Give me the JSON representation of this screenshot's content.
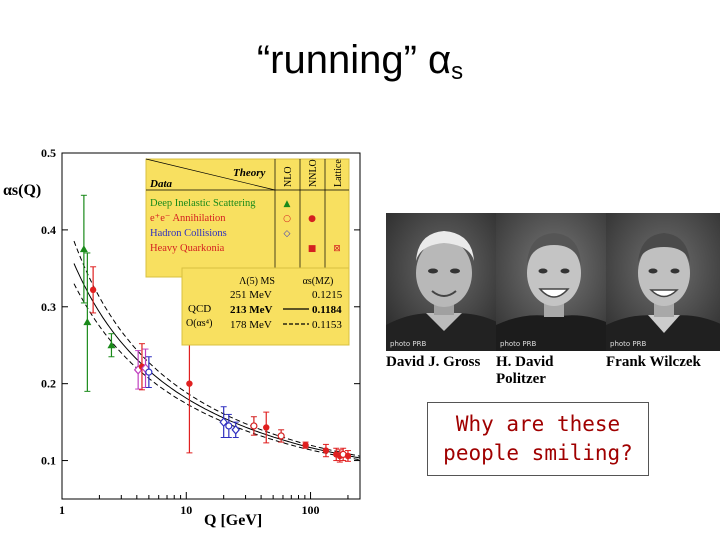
{
  "slide_title": {
    "main": "“running” α",
    "subscript": "s"
  },
  "chart_data": {
    "type": "scatter",
    "x_scale": "log",
    "y_scale": "linear",
    "xlim": [
      1,
      250
    ],
    "ylim": [
      0.05,
      0.5
    ],
    "xlabel": "Q [GeV]",
    "ylabel": "αs(Q)",
    "x_ticks": [
      1,
      10,
      100
    ],
    "y_ticks": [
      0.1,
      0.2,
      0.3,
      0.4,
      0.5
    ],
    "data_legend": {
      "header_data": "Data",
      "header_theory": "Theory",
      "columns": [
        "NLO",
        "NNLO",
        "Lattice"
      ],
      "rows": [
        {
          "label": "Deep Inelastic Scattering",
          "color": "#1a8a1a",
          "nlo": "▲",
          "nnlo": "",
          "lattice": ""
        },
        {
          "label": "e⁺e⁻ Annihilation",
          "color": "#d42020",
          "nlo": "○",
          "nnlo": "●",
          "lattice": ""
        },
        {
          "label": "Hadron Collisions",
          "color": "#3030c0",
          "nlo": "◇",
          "nnlo": "",
          "lattice": ""
        },
        {
          "label": "Heavy Quarkonia",
          "color": "#d42020",
          "nlo": "",
          "nnlo": "■",
          "lattice": "⊠"
        }
      ]
    },
    "qcd_legend": {
      "label_qcd": "QCD",
      "label_order": "O(αs⁴)",
      "col_lambda": "Λ(5) MS",
      "col_alpha": "αs(MZ)",
      "rows": [
        {
          "lambda": "251 MeV",
          "alpha": "0.1215",
          "line": "dashed"
        },
        {
          "lambda": "213 MeV",
          "alpha": "0.1184",
          "line": "solid"
        },
        {
          "lambda": "178 MeV",
          "alpha": "0.1153",
          "line": "dashed"
        }
      ]
    },
    "curves": [
      {
        "name": "251 MeV",
        "alpha_mz": 0.1215,
        "style": "dashed"
      },
      {
        "name": "213 MeV",
        "alpha_mz": 0.1184,
        "style": "solid"
      },
      {
        "name": "178 MeV",
        "alpha_mz": 0.1153,
        "style": "dashed"
      }
    ],
    "points": [
      {
        "q": 1.5,
        "alpha": 0.375,
        "err": 0.07,
        "marker": "triangle",
        "color": "#1a8a1a"
      },
      {
        "q": 1.6,
        "alpha": 0.28,
        "err": 0.09,
        "marker": "triangle",
        "color": "#1a8a1a"
      },
      {
        "q": 1.78,
        "alpha": 0.322,
        "err": 0.03,
        "marker": "circle",
        "color": "#e02020"
      },
      {
        "q": 2.5,
        "alpha": 0.25,
        "err": 0.015,
        "marker": "triangle",
        "color": "#1a8a1a"
      },
      {
        "q": 4.1,
        "alpha": 0.218,
        "err": 0.025,
        "marker": "diamond",
        "color": "#c040c0"
      },
      {
        "q": 4.4,
        "alpha": 0.222,
        "err": 0.03,
        "marker": "circle",
        "color": "#e02020"
      },
      {
        "q": 4.7,
        "alpha": 0.22,
        "err": 0.025,
        "marker": "diamond",
        "color": "#c040c0"
      },
      {
        "q": 5.0,
        "alpha": 0.215,
        "err": 0.02,
        "marker": "circle-open",
        "color": "#3030c0"
      },
      {
        "q": 10.6,
        "alpha": 0.2,
        "err": 0.09,
        "marker": "circle",
        "color": "#e02020"
      },
      {
        "q": 20,
        "alpha": 0.15,
        "err": 0.02,
        "marker": "diamond",
        "color": "#3030c0"
      },
      {
        "q": 22,
        "alpha": 0.145,
        "err": 0.015,
        "marker": "circle-open",
        "color": "#3030c0"
      },
      {
        "q": 25,
        "alpha": 0.14,
        "err": 0.01,
        "marker": "diamond",
        "color": "#3030c0"
      },
      {
        "q": 35,
        "alpha": 0.145,
        "err": 0.012,
        "marker": "circle-open",
        "color": "#d42020"
      },
      {
        "q": 44,
        "alpha": 0.143,
        "err": 0.02,
        "marker": "circle",
        "color": "#e02020"
      },
      {
        "q": 58,
        "alpha": 0.132,
        "err": 0.008,
        "marker": "circle-open",
        "color": "#d42020"
      },
      {
        "q": 91.2,
        "alpha": 0.12,
        "err": 0.004,
        "marker": "circle",
        "color": "#e02020"
      },
      {
        "q": 133,
        "alpha": 0.113,
        "err": 0.008,
        "marker": "circle",
        "color": "#e02020"
      },
      {
        "q": 161,
        "alpha": 0.108,
        "err": 0.008,
        "marker": "circle",
        "color": "#e02020"
      },
      {
        "q": 172,
        "alpha": 0.106,
        "err": 0.008,
        "marker": "circle",
        "color": "#e02020"
      },
      {
        "q": 183,
        "alpha": 0.108,
        "err": 0.008,
        "marker": "circle-open",
        "color": "#e02020"
      },
      {
        "q": 200,
        "alpha": 0.106,
        "err": 0.007,
        "marker": "circle",
        "color": "#e02020"
      }
    ]
  },
  "photos": [
    {
      "name": "David J. Gross",
      "credit": "photo PRB"
    },
    {
      "name": "H. David Politzer",
      "credit": "photo PRB"
    },
    {
      "name": "Frank Wilczek",
      "credit": "photo PRB"
    }
  ],
  "captions": [
    "David J. Gross",
    "H. David",
    "Politzer",
    "Frank Wilczek"
  ],
  "question": {
    "line1": "Why are these",
    "line2": "people smiling?"
  },
  "colors": {
    "legend_bg": "#f8e060",
    "legend_border": "#d8c040",
    "question_text": "#a00000"
  }
}
